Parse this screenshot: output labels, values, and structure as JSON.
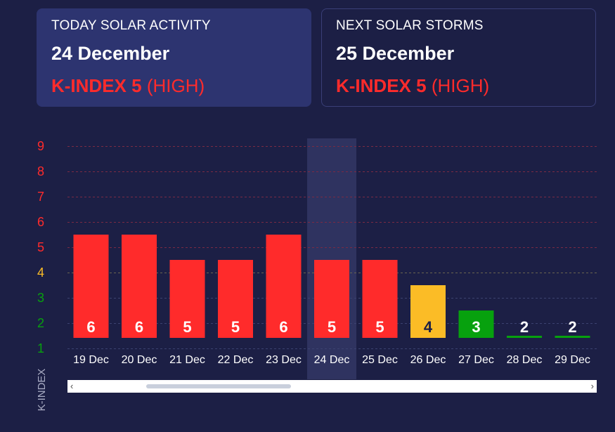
{
  "today_card": {
    "heading": "TODAY SOLAR ACTIVITY",
    "date": "24 December",
    "kindex_value": "K-INDEX 5",
    "kindex_level": "(HIGH)"
  },
  "next_card": {
    "heading": "NEXT SOLAR STORMS",
    "date": "25 December",
    "kindex_value": "K-INDEX 5",
    "kindex_level": "(HIGH)"
  },
  "scrollbar": {
    "left_arrow": "‹",
    "right_arrow": "›"
  },
  "colors": {
    "background": "#1c1f45",
    "high": "#ff2b2b",
    "medium": "#fbbc26",
    "low": "#07a10e",
    "highlight": "#2f3360"
  },
  "chart_data": {
    "type": "bar",
    "title": "",
    "xlabel": "",
    "ylabel": "K-INDEX",
    "ylim": [
      1,
      9
    ],
    "yticks": [
      1,
      2,
      3,
      4,
      5,
      6,
      7,
      8,
      9
    ],
    "grid": true,
    "highlighted_category": "24 Dec",
    "categories": [
      "19 Dec",
      "20 Dec",
      "21 Dec",
      "22 Dec",
      "23 Dec",
      "24 Dec",
      "25 Dec",
      "26 Dec",
      "27 Dec",
      "28 Dec",
      "29 Dec"
    ],
    "values": [
      6,
      6,
      5,
      5,
      6,
      5,
      5,
      4,
      3,
      2,
      2
    ],
    "value_labels": [
      "6",
      "6",
      "5",
      "5",
      "6",
      "5",
      "5",
      "4",
      "3",
      "2",
      "2"
    ],
    "bar_colors": [
      "#ff2b2b",
      "#ff2b2b",
      "#ff2b2b",
      "#ff2b2b",
      "#ff2b2b",
      "#ff2b2b",
      "#ff2b2b",
      "#fbbc26",
      "#07a10e",
      "#07a10e",
      "#07a10e"
    ]
  }
}
